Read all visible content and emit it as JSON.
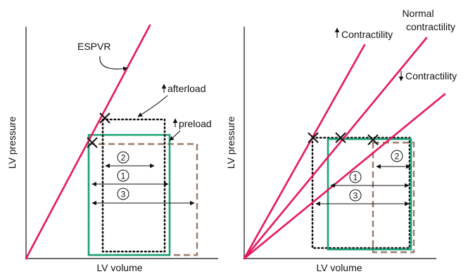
{
  "colors": {
    "espvr_line": "#e8175d",
    "box_green": "#1aa37a",
    "box_dotted": "#111111",
    "box_dashed": "#9a7b6a",
    "text": "#111111"
  },
  "left_panel": {
    "xlabel": "LV volume",
    "ylabel": "LV pressure",
    "espvr_label": "ESPVR",
    "afterload_label": "afterload",
    "preload_label": "preload",
    "circle_1": "1",
    "circle_2": "2",
    "circle_3": "3"
  },
  "right_panel": {
    "xlabel": "LV volume",
    "ylabel": "LV pressure",
    "increased_label": "Contractility",
    "normal_label_line1": "Normal",
    "normal_label_line2": "contractility",
    "decreased_label": "Contractility",
    "circle_1": "1",
    "circle_2": "2",
    "circle_3": "3"
  }
}
